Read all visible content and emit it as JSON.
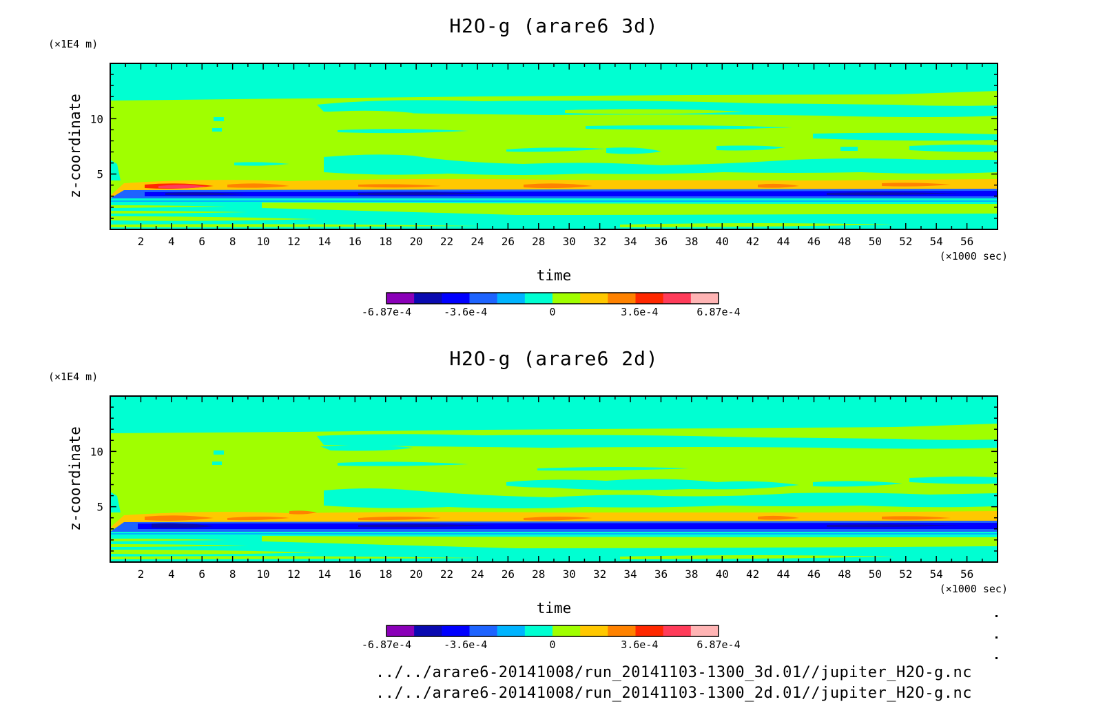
{
  "chart_data": [
    {
      "type": "heatmap",
      "title": "H2O-g (arare6 3d)",
      "xlabel": "time",
      "ylabel": "z-coordinate",
      "x_unit": "(×1000 sec)",
      "y_unit": "(×1E4 m)",
      "xlim": [
        0,
        58
      ],
      "ylim": [
        0,
        15
      ],
      "x_ticks": [
        "2",
        "4",
        "6",
        "8",
        "10",
        "12",
        "14",
        "16",
        "18",
        "20",
        "22",
        "24",
        "26",
        "28",
        "30",
        "32",
        "34",
        "36",
        "38",
        "40",
        "42",
        "44",
        "46",
        "48",
        "50",
        "52",
        "54",
        "56"
      ],
      "y_ticks": [
        "5",
        "10"
      ],
      "colorbar": {
        "colors": [
          "#8a00b8",
          "#0a0ab0",
          "#0000ff",
          "#1e64ff",
          "#00b4ff",
          "#00ffd2",
          "#a0ff00",
          "#ffc800",
          "#ff8200",
          "#ff2800",
          "#ff3c5a",
          "#ffb4b4"
        ],
        "tick_labels": [
          "-6.87e-4",
          "-3.6e-4",
          "0",
          "3.6e-4",
          "6.87e-4"
        ],
        "range": [
          -0.000687,
          0.000687
        ]
      },
      "bands": [
        {
          "z": [
            12.5,
            15
          ],
          "value": 0
        },
        {
          "z": [
            0,
            12.5
          ],
          "value": 8e-05
        },
        {
          "z": [
            3.15,
            3.45
          ],
          "value": -0.0004
        },
        {
          "z": [
            3.45,
            4.05
          ],
          "value": 0.0002
        },
        {
          "z": [
            0,
            2.2
          ],
          "value": 0
        }
      ]
    },
    {
      "type": "heatmap",
      "title": "H2O-g (arare6 2d)",
      "xlabel": "time",
      "ylabel": "z-coordinate",
      "x_unit": "(×1000 sec)",
      "y_unit": "(×1E4 m)",
      "xlim": [
        0,
        58
      ],
      "ylim": [
        0,
        15
      ],
      "x_ticks": [
        "2",
        "4",
        "6",
        "8",
        "10",
        "12",
        "14",
        "16",
        "18",
        "20",
        "22",
        "24",
        "26",
        "28",
        "30",
        "32",
        "34",
        "36",
        "38",
        "40",
        "42",
        "44",
        "46",
        "48",
        "50",
        "52",
        "54",
        "56"
      ],
      "y_ticks": [
        "5",
        "10"
      ],
      "colorbar": {
        "colors": [
          "#8a00b8",
          "#0a0ab0",
          "#0000ff",
          "#1e64ff",
          "#00b4ff",
          "#00ffd2",
          "#a0ff00",
          "#ffc800",
          "#ff8200",
          "#ff2800",
          "#ff3c5a",
          "#ffb4b4"
        ],
        "tick_labels": [
          "-6.87e-4",
          "-3.6e-4",
          "0",
          "3.6e-4",
          "6.87e-4"
        ],
        "range": [
          -0.000687,
          0.000687
        ]
      },
      "bands": [
        {
          "z": [
            12.5,
            15
          ],
          "value": 0
        },
        {
          "z": [
            0,
            12.5
          ],
          "value": 8e-05
        },
        {
          "z": [
            3.05,
            3.45
          ],
          "value": -0.0004
        },
        {
          "z": [
            3.45,
            4.1
          ],
          "value": 0.0002
        },
        {
          "z": [
            0,
            2.2
          ],
          "value": 0
        }
      ]
    }
  ],
  "footer": {
    "line1": "../../arare6-20141008/run_20141103-1300_3d.01//jupiter_H2O-g.nc",
    "line2": "../../arare6-20141008/run_20141103-1300_2d.01//jupiter_H2O-g.nc"
  }
}
